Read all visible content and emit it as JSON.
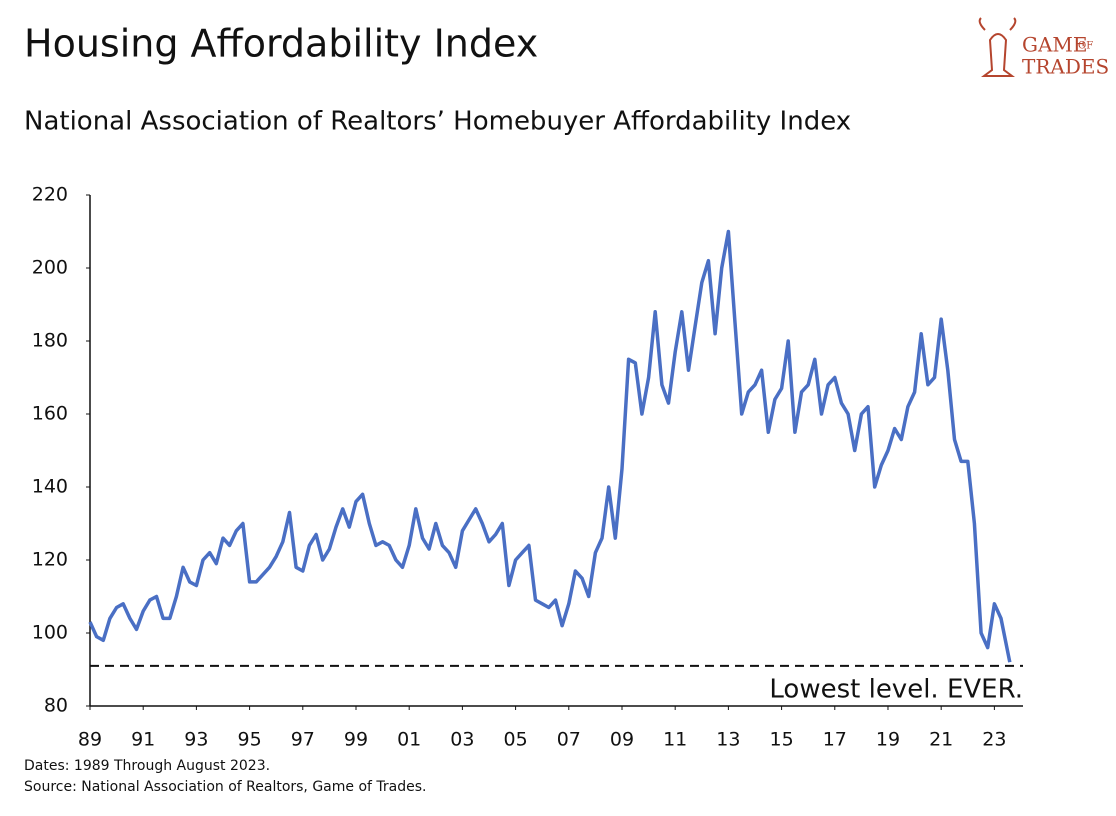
{
  "chart_data": {
    "type": "line",
    "title": "Housing Affordability Index",
    "subtitle": "National Association of Realtors’ Homebuyer Affordability Index",
    "annotation": "Lowest level. EVER.",
    "reference_line": 91,
    "notes": [
      "Dates: 1989 Through August 2023.",
      "Source: National Association of Realtors, Game of Trades."
    ],
    "logo": [
      "GAME",
      "OF",
      "TRADES"
    ],
    "x": [
      1989,
      1989.25,
      1989.5,
      1989.75,
      1990,
      1990.25,
      1990.5,
      1990.75,
      1991,
      1991.25,
      1991.5,
      1991.75,
      1992,
      1992.25,
      1992.5,
      1992.75,
      1993,
      1993.25,
      1993.5,
      1993.75,
      1994,
      1994.25,
      1994.5,
      1994.75,
      1995,
      1995.25,
      1995.5,
      1995.75,
      1996,
      1996.25,
      1996.5,
      1996.75,
      1997,
      1997.25,
      1997.5,
      1997.75,
      1998,
      1998.25,
      1998.5,
      1998.75,
      1999,
      1999.25,
      1999.5,
      1999.75,
      2000,
      2000.25,
      2000.5,
      2000.75,
      2001,
      2001.25,
      2001.5,
      2001.75,
      2002,
      2002.25,
      2002.5,
      2002.75,
      2003,
      2003.25,
      2003.5,
      2003.75,
      2004,
      2004.25,
      2004.5,
      2004.75,
      2005,
      2005.25,
      2005.5,
      2005.75,
      2006,
      2006.25,
      2006.5,
      2006.75,
      2007,
      2007.25,
      2007.5,
      2007.75,
      2008,
      2008.25,
      2008.5,
      2008.75,
      2009,
      2009.25,
      2009.5,
      2009.75,
      2010,
      2010.25,
      2010.5,
      2010.75,
      2011,
      2011.25,
      2011.5,
      2011.75,
      2012,
      2012.25,
      2012.5,
      2012.75,
      2013,
      2013.25,
      2013.5,
      2013.75,
      2014,
      2014.25,
      2014.5,
      2014.75,
      2015,
      2015.25,
      2015.5,
      2015.75,
      2016,
      2016.25,
      2016.5,
      2016.75,
      2017,
      2017.25,
      2017.5,
      2017.75,
      2018,
      2018.25,
      2018.5,
      2018.75,
      2019,
      2019.25,
      2019.5,
      2019.75,
      2020,
      2020.25,
      2020.5,
      2020.75,
      2021,
      2021.25,
      2021.5,
      2021.75,
      2022,
      2022.25,
      2022.5,
      2022.75,
      2023,
      2023.25,
      2023.58
    ],
    "series": [
      {
        "color": "#4a6fc4",
        "values": [
          103,
          99,
          98,
          104,
          107,
          108,
          104,
          101,
          106,
          109,
          110,
          104,
          104,
          110,
          118,
          114,
          113,
          120,
          122,
          119,
          126,
          124,
          128,
          130,
          114,
          114,
          116,
          118,
          121,
          125,
          133,
          118,
          117,
          124,
          127,
          120,
          123,
          129,
          134,
          129,
          136,
          138,
          130,
          124,
          125,
          124,
          120,
          118,
          124,
          134,
          126,
          123,
          130,
          124,
          122,
          118,
          128,
          131,
          134,
          130,
          125,
          127,
          130,
          113,
          120,
          122,
          124,
          109,
          108,
          107,
          109,
          102,
          108,
          117,
          115,
          110,
          122,
          126,
          140,
          126,
          145,
          175,
          174,
          160,
          170,
          188,
          168,
          163,
          177,
          188,
          172,
          184,
          196,
          202,
          182,
          200,
          210,
          185,
          160,
          166,
          168,
          172,
          155,
          164,
          167,
          180,
          155,
          166,
          168,
          175,
          160,
          168,
          170,
          163,
          160,
          150,
          160,
          162,
          140,
          146,
          150,
          156,
          153,
          162,
          166,
          182,
          168,
          170,
          186,
          172,
          153,
          147,
          147,
          130,
          100,
          96,
          108,
          104,
          92
        ]
      }
    ],
    "xlim": [
      1989,
      2023.7
    ],
    "ylim": [
      80,
      220
    ],
    "xticks": [
      {
        "value": 1989,
        "label": "89"
      },
      {
        "value": 1991,
        "label": "91"
      },
      {
        "value": 1993,
        "label": "93"
      },
      {
        "value": 1995,
        "label": "95"
      },
      {
        "value": 1997,
        "label": "97"
      },
      {
        "value": 1999,
        "label": "99"
      },
      {
        "value": 2001,
        "label": "01"
      },
      {
        "value": 2003,
        "label": "03"
      },
      {
        "value": 2005,
        "label": "05"
      },
      {
        "value": 2007,
        "label": "07"
      },
      {
        "value": 2009,
        "label": "09"
      },
      {
        "value": 2011,
        "label": "11"
      },
      {
        "value": 2013,
        "label": "13"
      },
      {
        "value": 2015,
        "label": "15"
      },
      {
        "value": 2017,
        "label": "17"
      },
      {
        "value": 2019,
        "label": "19"
      },
      {
        "value": 2021,
        "label": "21"
      },
      {
        "value": 2023,
        "label": "23"
      }
    ],
    "yticks": [
      80,
      100,
      120,
      140,
      160,
      180,
      200,
      220
    ]
  }
}
